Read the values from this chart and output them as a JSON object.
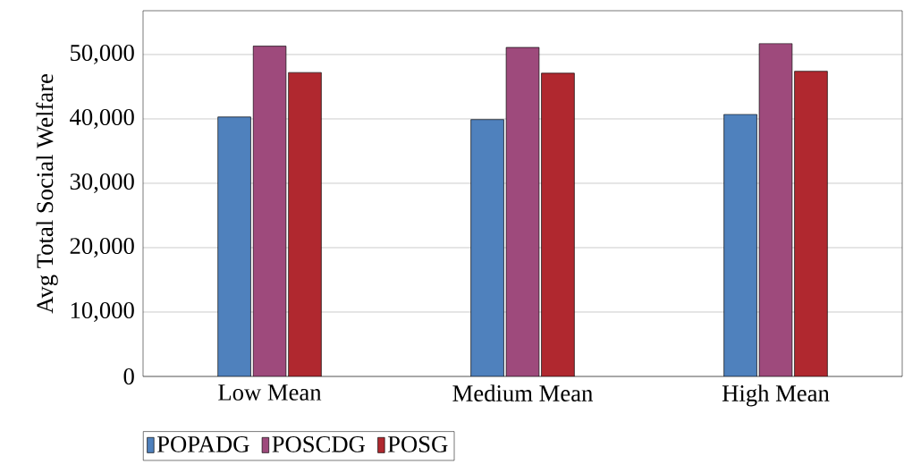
{
  "chart_data": {
    "type": "bar",
    "ylabel": "Avg Total Social Welfare",
    "categories": [
      "Low Mean",
      "Medium Mean",
      "High Mean"
    ],
    "series": [
      {
        "name": "POPADG",
        "color": "#4f81bd",
        "values": [
          40300,
          39900,
          40700
        ]
      },
      {
        "name": "POSCDG",
        "color": "#9e4a7c",
        "values": [
          51300,
          51100,
          51700
        ]
      },
      {
        "name": "POSG",
        "color": "#b0282f",
        "values": [
          47200,
          47100,
          47400
        ]
      }
    ],
    "ylim": [
      0,
      56800
    ],
    "yticks": [
      0,
      {
        "value": 10000,
        "label": "10,000"
      },
      {
        "value": 20000,
        "label": "20,000"
      },
      {
        "value": 30000,
        "label": "30,000"
      },
      {
        "value": 40000,
        "label": "40,000"
      },
      {
        "value": 50000,
        "label": "50,000"
      }
    ],
    "grid": "y",
    "legend": "bottom left"
  }
}
